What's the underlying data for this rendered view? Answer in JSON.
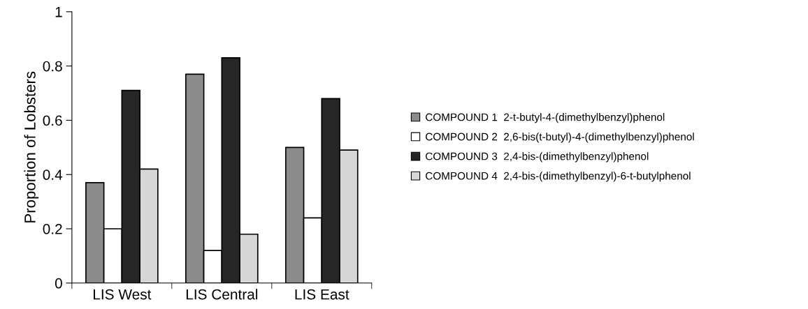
{
  "chart_data": {
    "type": "bar",
    "ylabel": "Proportion of Lobsters",
    "categories": [
      "LIS West",
      "LIS Central",
      "LIS East"
    ],
    "series": [
      {
        "name": "COMPOUND 1  2-t-butyl-4-(dimethylbenzyl)phenol",
        "color": "#8c8c8c",
        "values": [
          0.37,
          0.77,
          0.5
        ]
      },
      {
        "name": "COMPOUND 2  2,6-bis(t-butyl)-4-(dimethylbenzyl)phenol",
        "color": "#ffffff",
        "values": [
          0.2,
          0.12,
          0.24
        ]
      },
      {
        "name": "COMPOUND 3  2,4-bis-(dimethylbenzyl)phenol",
        "color": "#262626",
        "values": [
          0.71,
          0.83,
          0.68
        ]
      },
      {
        "name": "COMPOUND 4  2,4-bis-(dimethylbenzyl)-6-t-butylphenol",
        "color": "#d6d6d6",
        "values": [
          0.42,
          0.18,
          0.49
        ]
      }
    ],
    "ylim": [
      0,
      1
    ],
    "yticks": [
      0,
      0.2,
      0.4,
      0.6,
      0.8,
      1
    ],
    "grid": false,
    "legend": "right"
  }
}
